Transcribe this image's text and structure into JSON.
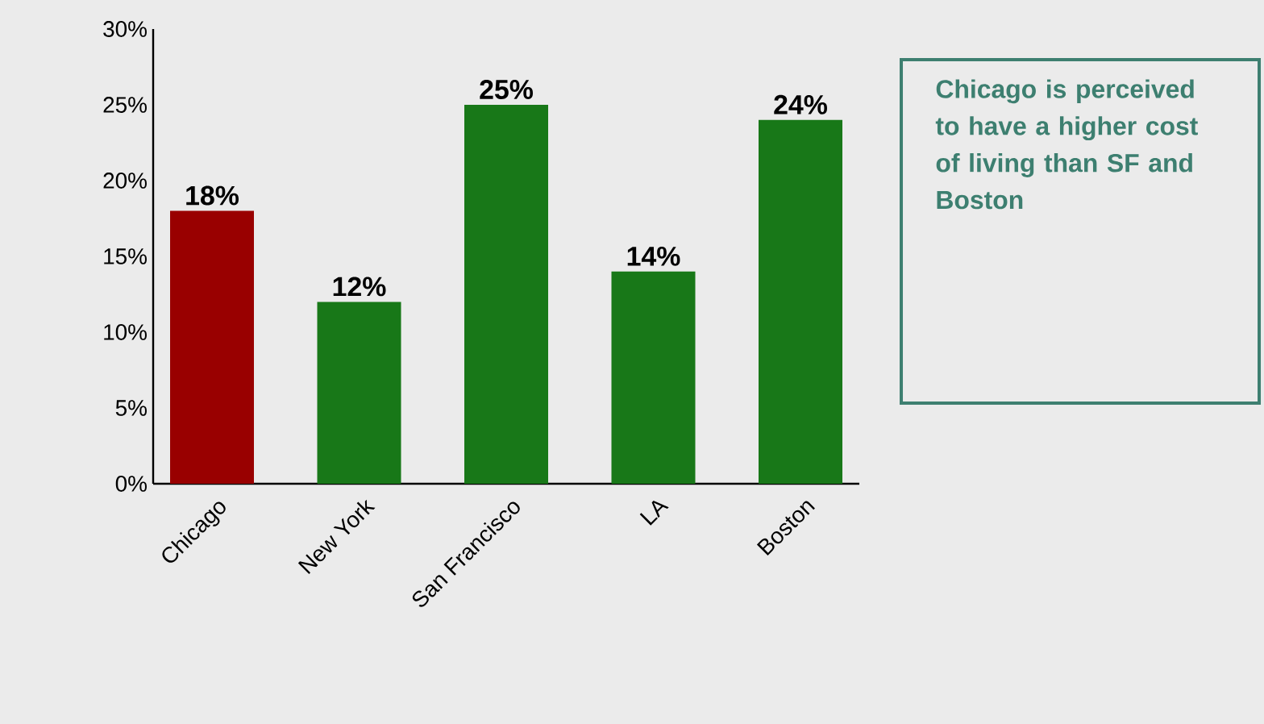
{
  "chart_data": {
    "type": "bar",
    "categories": [
      "Chicago",
      "New York",
      "San Francisco",
      "LA",
      "Boston"
    ],
    "values": [
      18,
      12,
      25,
      14,
      24
    ],
    "colors": [
      "#990000",
      "#187818",
      "#187818",
      "#187818",
      "#187818"
    ],
    "value_labels": [
      "18%",
      "12%",
      "25%",
      "14%",
      "24%"
    ],
    "ylim": [
      0,
      30
    ],
    "yticks": [
      {
        "value": 0,
        "label": "0%"
      },
      {
        "value": 5,
        "label": "5%"
      },
      {
        "value": 10,
        "label": "10%"
      },
      {
        "value": 15,
        "label": "15%"
      },
      {
        "value": 20,
        "label": "20%"
      },
      {
        "value": 25,
        "label": "25%"
      },
      {
        "value": 30,
        "label": "30%"
      }
    ],
    "annotations": [
      "Chicago is perceived to have a higher cost of living than SF and Boston"
    ],
    "grid": false
  }
}
